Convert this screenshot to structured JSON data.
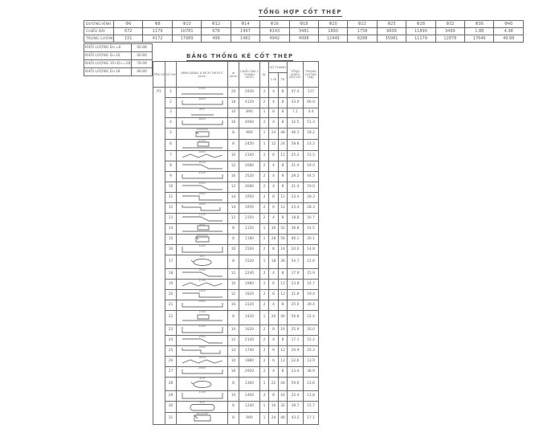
{
  "page": {
    "background": "#ffffff",
    "line_color": "#6b6b6b",
    "text_color": "#5e5e5e",
    "title_color": "#4f4f4f"
  },
  "summary_table": {
    "title": "TỔNG HỢP CỐT THÉP",
    "row_labels": [
      "ĐƯỜNG KÍNH",
      "CHIỀU DÀI",
      "TRỌNG LƯỢNG"
    ],
    "diameters": [
      "Φ6",
      "Φ8",
      "Φ10",
      "Φ12",
      "Φ14",
      "Φ16",
      "Φ18",
      "Φ20",
      "Φ22",
      "Φ25",
      "Φ28",
      "Φ32",
      "Φ36",
      "Φ40"
    ],
    "lengths": [
      "672",
      "1179",
      "10781",
      "678",
      "1997",
      "8143",
      "3481",
      "1890",
      "1758",
      "9609",
      "11890",
      "3499",
      "1.88",
      "4.98"
    ],
    "weights": [
      "151",
      "4172",
      "17989",
      "498",
      "1482",
      "4942",
      "4998",
      "12449",
      "8288",
      "35981",
      "11179",
      "12878",
      "17646",
      "49.88"
    ]
  },
  "mass_table": {
    "rows": [
      {
        "label": "KHỐI LƯỢNG D<=8",
        "value": "40.88"
      },
      {
        "label": "KHỐI LƯỢNG D=10",
        "value": "40.80"
      },
      {
        "label": "KHỐI LƯỢNG 10<D<=18",
        "value": "78.99"
      },
      {
        "label": "KHỐI LƯỢNG D>18",
        "value": "48.80"
      }
    ]
  },
  "schedule_table": {
    "title": "BẢNG THỐNG KÊ CỐT THÉP",
    "component": "P1",
    "headers": {
      "ck": "TÊN CK",
      "sh": "SỐ KH",
      "shape": "HÌNH DÁNG & KÍCH THƯỚC (mm)",
      "phi": "φ (mm)",
      "len": "CHIỀU DÀI 1 THANH (mm)",
      "sl": "SL",
      "so_thanh": "SỐ THANH",
      "n1": "1 CK",
      "n2": "TB",
      "tot": "TỔNG CHIỀU DÀI (m)",
      "wt": "TRỌNG LƯỢNG (kg)"
    },
    "rows": [
      {
        "sh": "1",
        "shape": "straight",
        "dim": "5930",
        "phi": "20",
        "len": "5930",
        "sl": "2",
        "n1": "4",
        "n2": "8",
        "tot": "47.4",
        "wt": "117",
        "h": 13
      },
      {
        "sh": "2",
        "shape": "hook-both",
        "dim": "3800",
        "phi": "18",
        "len": "4120",
        "sl": "2",
        "n1": "4",
        "n2": "8",
        "tot": "33.0",
        "wt": "66.0",
        "h": 13
      },
      {
        "sh": "3",
        "shape": "straight-short",
        "dim": "890",
        "phi": "10",
        "len": "890",
        "sl": "1",
        "n1": "8",
        "n2": "8",
        "tot": "7.1",
        "wt": "4.4",
        "h": 12
      },
      {
        "sh": "4",
        "shape": "hook-both",
        "dim": "3800",
        "phi": "16",
        "len": "4060",
        "sl": "2",
        "n1": "4",
        "n2": "8",
        "tot": "32.5",
        "wt": "51.3",
        "h": 13
      },
      {
        "sh": "5",
        "shape": "stirrup",
        "dim": "150x300",
        "phi": "8",
        "len": "960",
        "sl": "1",
        "n1": "24",
        "n2": "48",
        "tot": "46.1",
        "wt": "18.2",
        "h": 14
      },
      {
        "sh": "6",
        "shape": "complex",
        "dim": "2200",
        "phi": "8",
        "len": "2450",
        "sl": "1",
        "n1": "12",
        "n2": "24",
        "tot": "58.8",
        "wt": "23.2",
        "h": 14
      },
      {
        "sh": "7",
        "shape": "zigzag",
        "dim": "1800",
        "phi": "10",
        "len": "2100",
        "sl": "2",
        "n1": "6",
        "n2": "12",
        "tot": "25.2",
        "wt": "15.5",
        "h": 13
      },
      {
        "sh": "8",
        "shape": "z-bend",
        "dim": "2400",
        "phi": "12",
        "len": "2680",
        "sl": "2",
        "n1": "4",
        "n2": "8",
        "tot": "21.4",
        "wt": "19.0",
        "h": 13
      },
      {
        "sh": "9",
        "shape": "hook-both",
        "dim": "3200",
        "phi": "16",
        "len": "3520",
        "sl": "2",
        "n1": "4",
        "n2": "8",
        "tot": "28.2",
        "wt": "44.5",
        "h": 13
      },
      {
        "sh": "10",
        "shape": "z-bend",
        "dim": "2400",
        "phi": "12",
        "len": "2680",
        "sl": "2",
        "n1": "4",
        "n2": "8",
        "tot": "21.4",
        "wt": "19.0",
        "h": 13
      },
      {
        "sh": "11",
        "shape": "step",
        "dim": "1600",
        "phi": "14",
        "len": "1950",
        "sl": "2",
        "n1": "6",
        "n2": "12",
        "tot": "23.4",
        "wt": "28.3",
        "h": 13
      },
      {
        "sh": "12",
        "shape": "step-hook",
        "dim": "1600",
        "phi": "14",
        "len": "1950",
        "sl": "2",
        "n1": "6",
        "n2": "12",
        "tot": "23.4",
        "wt": "28.3",
        "h": 13
      },
      {
        "sh": "13",
        "shape": "z-bend",
        "dim": "2100",
        "phi": "12",
        "len": "2350",
        "sl": "2",
        "n1": "4",
        "n2": "8",
        "tot": "18.8",
        "wt": "16.7",
        "h": 13
      },
      {
        "sh": "14",
        "shape": "complex",
        "dim": "900",
        "phi": "8",
        "len": "1150",
        "sl": "1",
        "n1": "16",
        "n2": "32",
        "tot": "36.8",
        "wt": "14.5",
        "h": 13
      },
      {
        "sh": "15",
        "shape": "stirrup",
        "dim": "200x350",
        "phi": "8",
        "len": "1180",
        "sl": "1",
        "n1": "28",
        "n2": "56",
        "tot": "66.1",
        "wt": "26.1",
        "h": 13
      },
      {
        "sh": "16",
        "shape": "u-bar",
        "dim": "1200",
        "phi": "10",
        "len": "1500",
        "sl": "2",
        "n1": "8",
        "n2": "16",
        "tot": "24.0",
        "wt": "14.8",
        "h": 13
      },
      {
        "sh": "17",
        "shape": "hoop",
        "dim": "450",
        "phi": "8",
        "len": "1520",
        "sl": "1",
        "n1": "18",
        "n2": "36",
        "tot": "54.7",
        "wt": "21.6",
        "h": 17
      },
      {
        "sh": "18",
        "shape": "z-bend",
        "dim": "2000",
        "phi": "12",
        "len": "2240",
        "sl": "2",
        "n1": "4",
        "n2": "8",
        "tot": "17.9",
        "wt": "15.9",
        "h": 13
      },
      {
        "sh": "19",
        "shape": "zigzag",
        "dim": "1700",
        "phi": "10",
        "len": "1980",
        "sl": "2",
        "n1": "6",
        "n2": "12",
        "tot": "23.8",
        "wt": "14.7",
        "h": 13
      },
      {
        "sh": "20",
        "shape": "step",
        "dim": "1500",
        "phi": "12",
        "len": "1820",
        "sl": "2",
        "n1": "6",
        "n2": "12",
        "tot": "21.8",
        "wt": "19.4",
        "h": 13
      },
      {
        "sh": "21",
        "shape": "hook-both",
        "dim": "2800",
        "phi": "16",
        "len": "3120",
        "sl": "2",
        "n1": "4",
        "n2": "8",
        "tot": "25.0",
        "wt": "39.4",
        "h": 13
      },
      {
        "sh": "22",
        "shape": "complex",
        "dim": "1100",
        "phi": "8",
        "len": "1420",
        "sl": "1",
        "n1": "20",
        "n2": "40",
        "tot": "56.8",
        "wt": "22.4",
        "h": 18
      },
      {
        "sh": "23",
        "shape": "u-bar",
        "dim": "1300",
        "phi": "10",
        "len": "1620",
        "sl": "2",
        "n1": "8",
        "n2": "16",
        "tot": "25.9",
        "wt": "16.0",
        "h": 13
      },
      {
        "sh": "24",
        "shape": "z-bend",
        "dim": "1900",
        "phi": "12",
        "len": "2140",
        "sl": "2",
        "n1": "4",
        "n2": "8",
        "tot": "17.1",
        "wt": "15.2",
        "h": 13
      },
      {
        "sh": "25",
        "shape": "step-hook",
        "dim": "1400",
        "phi": "14",
        "len": "1740",
        "sl": "2",
        "n1": "6",
        "n2": "12",
        "tot": "20.9",
        "wt": "25.3",
        "h": 13
      },
      {
        "sh": "26",
        "shape": "zigzag",
        "dim": "1600",
        "phi": "10",
        "len": "1880",
        "sl": "2",
        "n1": "6",
        "n2": "12",
        "tot": "22.6",
        "wt": "13.9",
        "h": 13
      },
      {
        "sh": "27",
        "shape": "hook-both",
        "dim": "2600",
        "phi": "16",
        "len": "2920",
        "sl": "2",
        "n1": "4",
        "n2": "8",
        "tot": "23.4",
        "wt": "36.9",
        "h": 13
      },
      {
        "sh": "28",
        "shape": "hoop",
        "dim": "400",
        "phi": "8",
        "len": "1360",
        "sl": "1",
        "n1": "22",
        "n2": "44",
        "tot": "59.8",
        "wt": "23.6",
        "h": 17
      },
      {
        "sh": "29",
        "shape": "u-bar",
        "dim": "1100",
        "phi": "10",
        "len": "1400",
        "sl": "2",
        "n1": "8",
        "n2": "16",
        "tot": "22.4",
        "wt": "13.8",
        "h": 13
      },
      {
        "sh": "30",
        "shape": "rounded",
        "dim": "950",
        "phi": "8",
        "len": "1240",
        "sl": "1",
        "n1": "16",
        "n2": "32",
        "tot": "39.7",
        "wt": "15.7",
        "h": 14
      },
      {
        "sh": "31",
        "shape": "stirrup2",
        "dim": "160x280",
        "phi": "8",
        "len": "900",
        "sl": "1",
        "n1": "24",
        "n2": "48",
        "tot": "43.2",
        "wt": "17.1",
        "h": 14
      }
    ]
  }
}
